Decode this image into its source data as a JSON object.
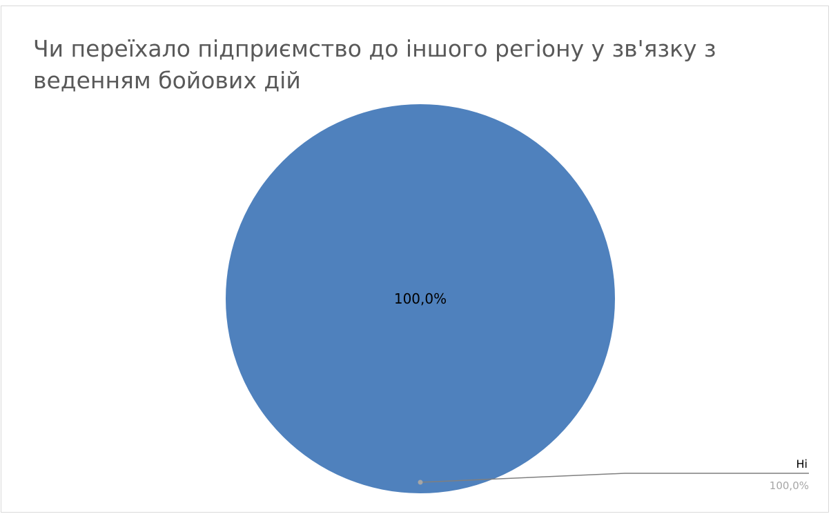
{
  "chart_data": {
    "type": "pie",
    "title": "Чи переїхало підприємство до іншого регіону у зв'язку з веденням бойових дій",
    "categories": [
      "Ні"
    ],
    "values": [
      100.0
    ],
    "data_labels": [
      "100,0%"
    ],
    "callout": {
      "category": "Ні",
      "value": "100,0%"
    },
    "colors": [
      "#4f81bd"
    ],
    "legend": "none"
  }
}
